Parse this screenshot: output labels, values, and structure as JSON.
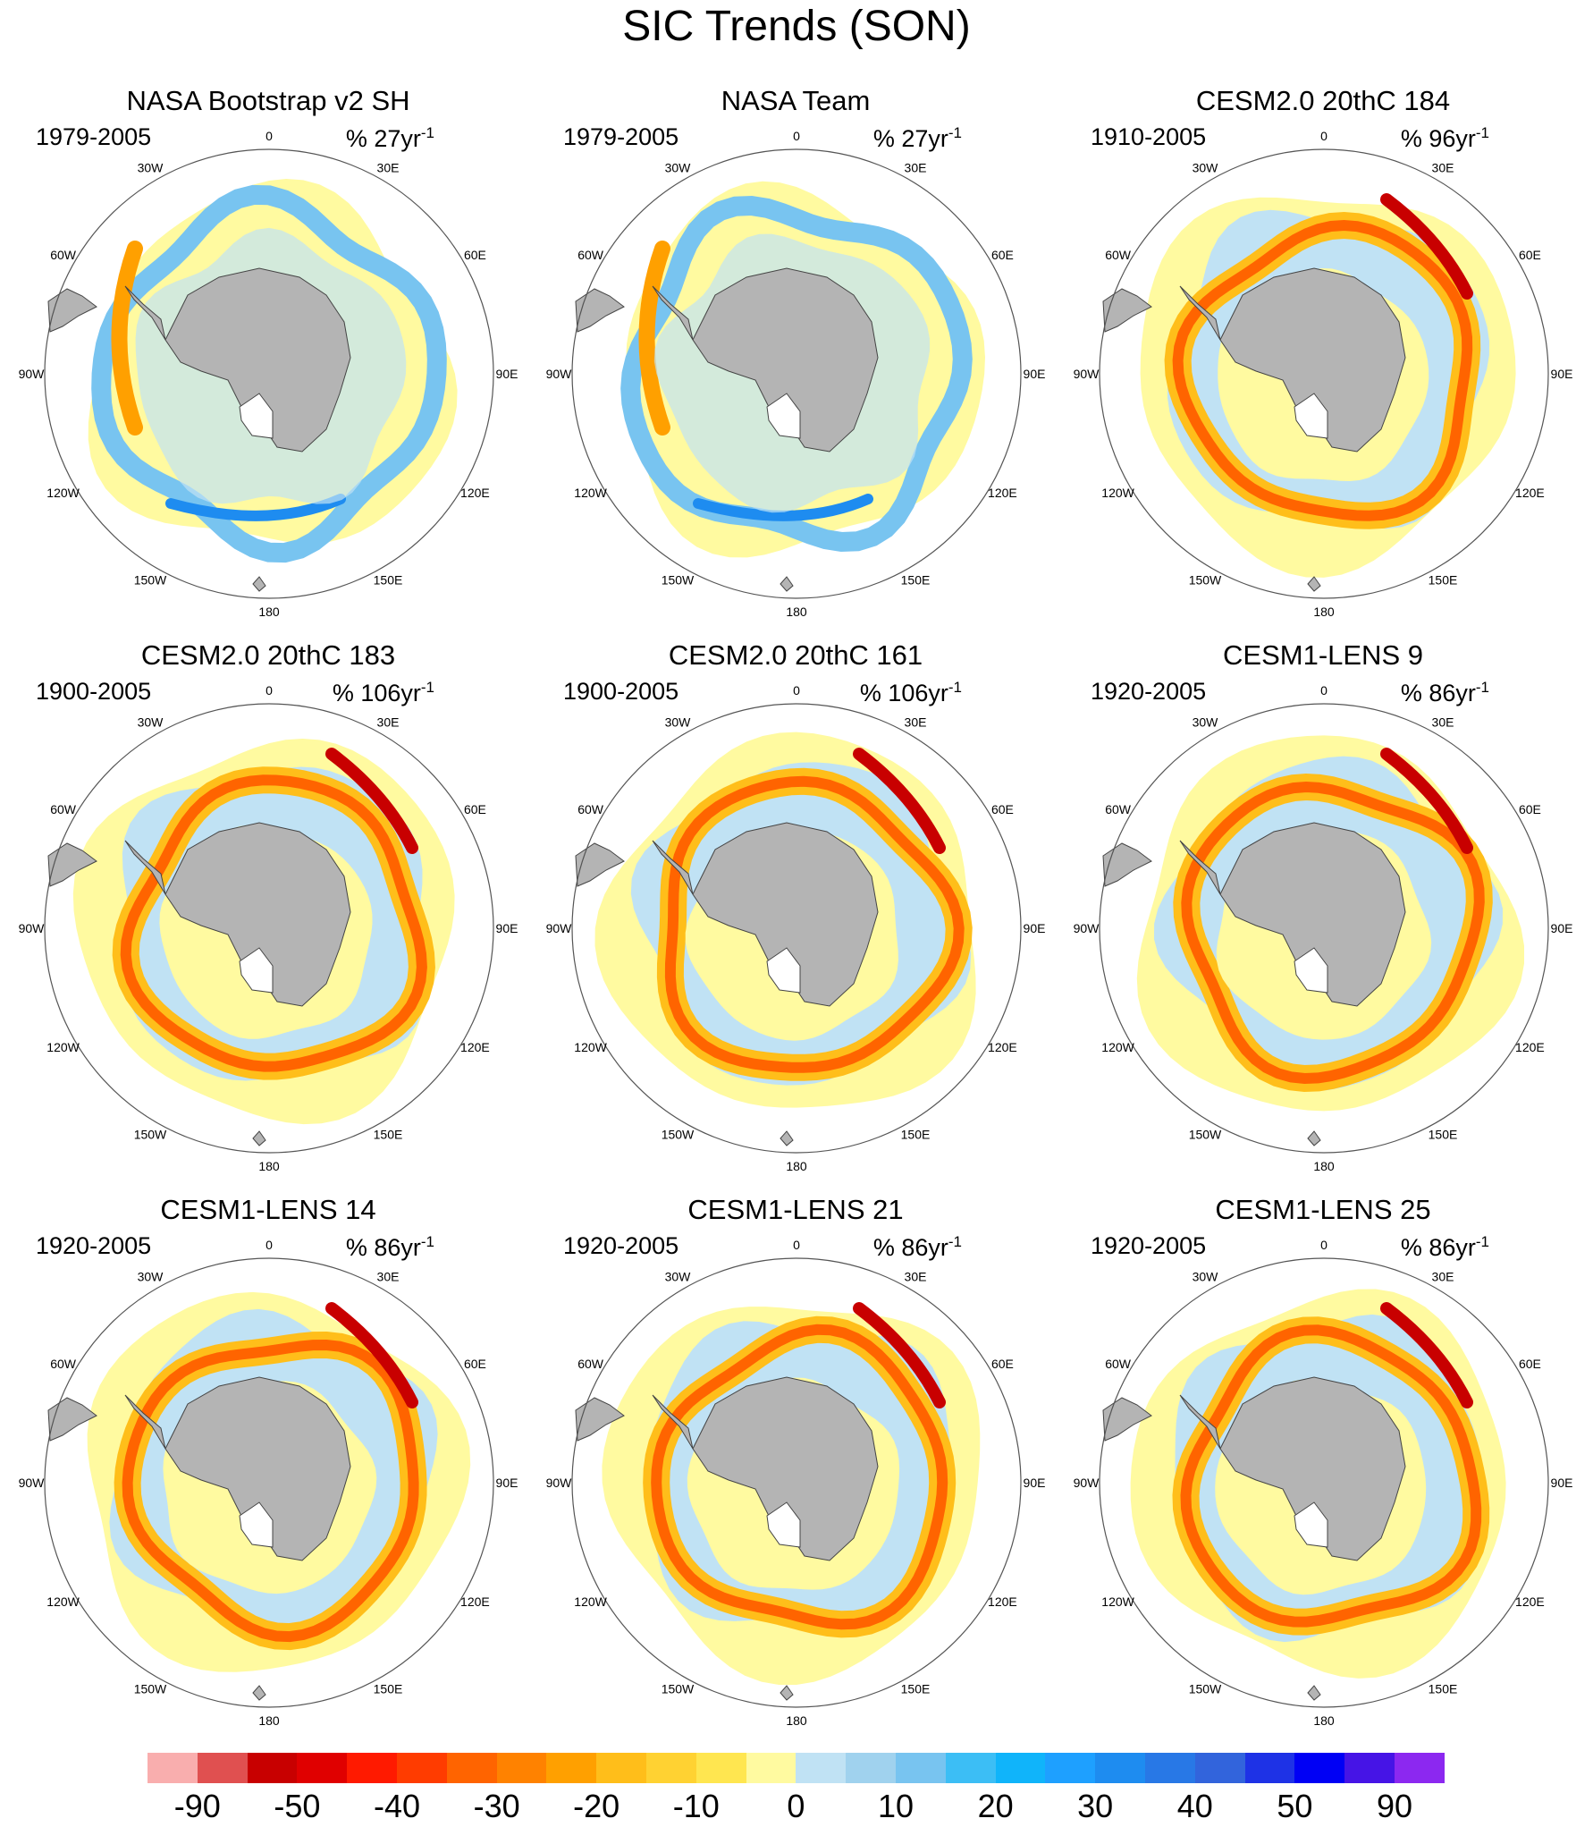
{
  "title": "SIC Trends (SON)",
  "panels": [
    {
      "title": "NASA Bootstrap v2 SH",
      "period": "1979-2005",
      "units": "% 27yr",
      "exp": "-1",
      "kind": "obs"
    },
    {
      "title": "NASA Team",
      "period": "1979-2005",
      "units": "% 27yr",
      "exp": "-1",
      "kind": "obs"
    },
    {
      "title": "CESM2.0 20thC 184",
      "period": "1910-2005",
      "units": "% 96yr",
      "exp": "-1",
      "kind": "model"
    },
    {
      "title": "CESM2.0 20thC 183",
      "period": "1900-2005",
      "units": "% 106yr",
      "exp": "-1",
      "kind": "model"
    },
    {
      "title": "CESM2.0 20thC 161",
      "period": "1900-2005",
      "units": "% 106yr",
      "exp": "-1",
      "kind": "model"
    },
    {
      "title": "CESM1-LENS 9",
      "period": "1920-2005",
      "units": "% 86yr",
      "exp": "-1",
      "kind": "model"
    },
    {
      "title": "CESM1-LENS 14",
      "period": "1920-2005",
      "units": "% 86yr",
      "exp": "-1",
      "kind": "model"
    },
    {
      "title": "CESM1-LENS 21",
      "period": "1920-2005",
      "units": "% 86yr",
      "exp": "-1",
      "kind": "model"
    },
    {
      "title": "CESM1-LENS 25",
      "period": "1920-2005",
      "units": "% 86yr",
      "exp": "-1",
      "kind": "model"
    }
  ],
  "lon_labels": [
    "0",
    "30E",
    "60E",
    "90E",
    "120E",
    "150E",
    "180",
    "150W",
    "120W",
    "90W",
    "60W",
    "30W"
  ],
  "colorbar": {
    "labels": [
      "-90",
      "-50",
      "-40",
      "-30",
      "-20",
      "-10",
      "0",
      "10",
      "20",
      "30",
      "40",
      "50",
      "90"
    ],
    "colors": [
      "#f9aeae",
      "#e05050",
      "#c80000",
      "#e00000",
      "#ff1a00",
      "#ff3c00",
      "#ff6400",
      "#ff8200",
      "#ffa000",
      "#ffbe1a",
      "#ffd232",
      "#ffe650",
      "#fffaa0",
      "#c0e2f4",
      "#a0d2ee",
      "#78c4f0",
      "#3cbef5",
      "#10b4fa",
      "#1ea0ff",
      "#1e8cf0",
      "#2878e6",
      "#3264dc",
      "#1e32e6",
      "#0000f5",
      "#4614e6",
      "#8c28f0"
    ]
  },
  "palette": {
    "land": "#b4b4b4",
    "circle": "#555555"
  }
}
